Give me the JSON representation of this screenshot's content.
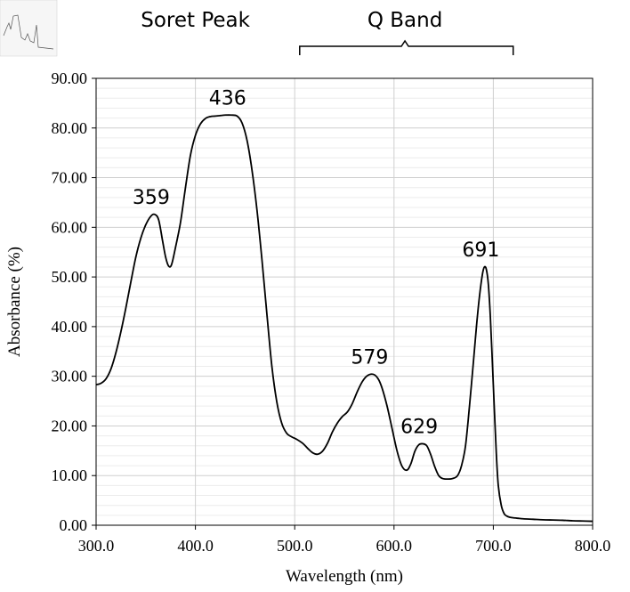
{
  "chart_data": {
    "type": "line",
    "title": "",
    "xlabel": "Wavelength (nm)",
    "ylabel": "Absorbance (%)",
    "xlim": [
      300,
      800
    ],
    "ylim": [
      0,
      90
    ],
    "x_ticks": [
      "300.0",
      "400.0",
      "500.0",
      "600.0",
      "700.0",
      "800.0"
    ],
    "y_ticks": [
      "0.00",
      "10.00",
      "20.00",
      "30.00",
      "40.00",
      "50.00",
      "60.00",
      "70.00",
      "80.00",
      "90.00"
    ],
    "grid": {
      "major": true,
      "minor_y": true
    },
    "series": [
      {
        "color": "#000000",
        "x": [
          300,
          305,
          310,
          315,
          320,
          325,
          330,
          335,
          340,
          345,
          350,
          355,
          359,
          363,
          367,
          370,
          373,
          376,
          380,
          385,
          390,
          395,
          400,
          405,
          410,
          415,
          420,
          425,
          430,
          436,
          442,
          447,
          452,
          457,
          462,
          467,
          472,
          477,
          482,
          487,
          492,
          497,
          502,
          508,
          513,
          518,
          523,
          528,
          533,
          538,
          543,
          548,
          553,
          558,
          563,
          568,
          573,
          579,
          584,
          588,
          593,
          598,
          603,
          608,
          613,
          617,
          621,
          625,
          629,
          633,
          637,
          641,
          645,
          649,
          654,
          659,
          664,
          668,
          672,
          676,
          680,
          683,
          686,
          689,
          691,
          693,
          695,
          697,
          699,
          701,
          703,
          705,
          708,
          711,
          714,
          717,
          720,
          725,
          730,
          740,
          750,
          760,
          770,
          780,
          790,
          800
        ],
        "y": [
          28.3,
          28.6,
          29.5,
          31.5,
          34.8,
          39.0,
          43.8,
          49.0,
          54.0,
          57.8,
          60.5,
          62.2,
          62.6,
          61.5,
          57.2,
          54.0,
          52.2,
          52.5,
          56.0,
          61.0,
          68.0,
          74.5,
          78.5,
          80.8,
          81.9,
          82.3,
          82.4,
          82.5,
          82.6,
          82.6,
          82.4,
          81.0,
          77.5,
          71.5,
          63.5,
          53.5,
          42.5,
          32.0,
          24.8,
          20.5,
          18.5,
          17.8,
          17.3,
          16.5,
          15.5,
          14.6,
          14.3,
          14.9,
          16.5,
          18.8,
          20.6,
          21.9,
          22.8,
          24.5,
          26.9,
          28.9,
          30.1,
          30.4,
          29.5,
          27.6,
          24.0,
          19.5,
          15.0,
          11.9,
          11.1,
          12.4,
          14.9,
          16.2,
          16.4,
          16.0,
          14.2,
          11.8,
          10.0,
          9.4,
          9.3,
          9.4,
          10.0,
          12.0,
          16.0,
          24.0,
          33.0,
          40.0,
          46.0,
          50.5,
          52.0,
          51.5,
          48.5,
          42.0,
          33.0,
          23.5,
          14.5,
          8.0,
          4.0,
          2.3,
          1.8,
          1.6,
          1.5,
          1.4,
          1.3,
          1.2,
          1.1,
          1.05,
          1.0,
          0.9,
          0.85,
          0.8
        ]
      }
    ],
    "annotations": [
      {
        "text": "359",
        "x": 359,
        "y": 62.6
      },
      {
        "text": "436",
        "x": 436,
        "y": 82.6
      },
      {
        "text": "579",
        "x": 579,
        "y": 30.4
      },
      {
        "text": "629",
        "x": 629,
        "y": 16.4
      },
      {
        "text": "691",
        "x": 691,
        "y": 52.0
      }
    ],
    "band_labels": [
      {
        "text": "Soret Peak",
        "center_x": 400
      },
      {
        "text": "Q Band",
        "center_x": 611,
        "from_x": 505,
        "to_x": 720
      }
    ]
  }
}
